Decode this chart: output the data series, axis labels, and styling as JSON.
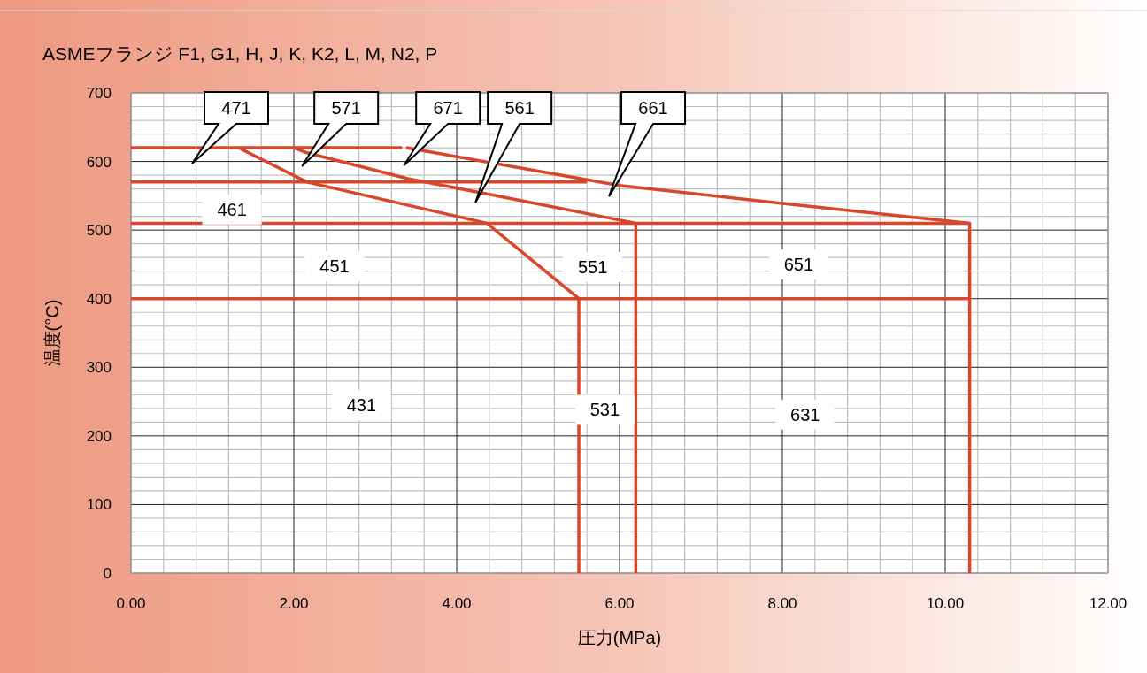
{
  "chart_data": {
    "type": "line",
    "title": "ASMEフランジ F1, G1, H, J, K, K2, L, M, N2, P",
    "xlabel": "圧力(MPa)",
    "ylabel": "温度(°C)",
    "xlim": [
      0,
      12
    ],
    "ylim": [
      0,
      700
    ],
    "xticks": [
      {
        "value": 0,
        "label": "0.00"
      },
      {
        "value": 2,
        "label": "2.00"
      },
      {
        "value": 4,
        "label": "4.00"
      },
      {
        "value": 6,
        "label": "6.00"
      },
      {
        "value": 8,
        "label": "8.00"
      },
      {
        "value": 10,
        "label": "10.00"
      },
      {
        "value": 12,
        "label": "12.00"
      }
    ],
    "yticks": [
      0,
      100,
      200,
      300,
      400,
      500,
      600,
      700
    ],
    "grid": true,
    "series": [
      {
        "color": "#d9472b",
        "x": [
          0,
          3.33
        ],
        "values": [
          620,
          620
        ]
      },
      {
        "color": "#d9472b",
        "x": [
          0,
          5.6
        ],
        "values": [
          570,
          570
        ]
      },
      {
        "color": "#d9472b",
        "x": [
          0,
          10.3,
          10.3
        ],
        "values": [
          510,
          510,
          0
        ]
      },
      {
        "color": "#d9472b",
        "x": [
          0,
          10.3
        ],
        "values": [
          400,
          400
        ]
      },
      {
        "color": "#d9472b",
        "x": [
          1.32,
          2.16,
          4.37,
          5.5,
          5.5
        ],
        "values": [
          620,
          570,
          510,
          400,
          0
        ]
      },
      {
        "color": "#d9472b",
        "x": [
          2.0,
          2.15,
          3.4,
          4.4,
          6.2,
          6.2
        ],
        "values": [
          620,
          613,
          575,
          552,
          510,
          0
        ]
      },
      {
        "color": "#d9472b",
        "x": [
          3.38,
          6.0,
          8.0,
          10.3
        ],
        "values": [
          620,
          565,
          539,
          510
        ]
      }
    ],
    "annotations": [
      "471",
      "571",
      "671",
      "561",
      "661",
      "461",
      "451",
      "551",
      "651",
      "431",
      "531",
      "631"
    ]
  }
}
